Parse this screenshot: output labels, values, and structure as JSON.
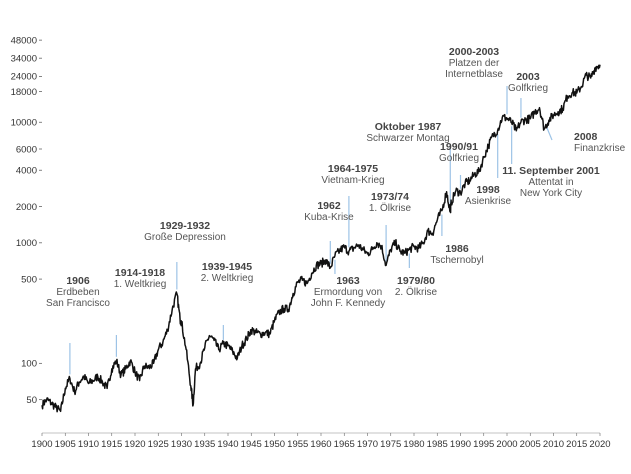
{
  "chart_data": {
    "type": "line",
    "title": "",
    "xlabel": "",
    "ylabel": "",
    "yscale": "log",
    "xlim": [
      1900,
      2020
    ],
    "ylim": [
      28,
      50000
    ],
    "grid": false,
    "legend": "none",
    "colors": {
      "line": "#111111",
      "annotation": "#9dc3e6",
      "text": "#444444"
    },
    "y_ticks": [
      {
        "value": 48000,
        "label": "48000"
      },
      {
        "value": 34000,
        "label": "34000"
      },
      {
        "value": 24000,
        "label": "24000"
      },
      {
        "value": 18000,
        "label": "18000"
      },
      {
        "value": 10000,
        "label": "10000"
      },
      {
        "value": 6000,
        "label": "6000"
      },
      {
        "value": 4000,
        "label": "4000"
      },
      {
        "value": 2000,
        "label": "2000"
      },
      {
        "value": 1000,
        "label": "1000"
      },
      {
        "value": 500,
        "label": "500"
      },
      {
        "value": 100,
        "label": "100"
      },
      {
        "value": 50,
        "label": "50"
      }
    ],
    "x_ticks": [
      "1900",
      "1905",
      "1910",
      "1915",
      "1920",
      "1925",
      "1930",
      "1935",
      "1940",
      "1945",
      "1950",
      "1955",
      "1960",
      "1965",
      "1970",
      "1975",
      "1980",
      "1985",
      "1990",
      "1995",
      "2000",
      "2005",
      "2010",
      "2015",
      "2020"
    ],
    "series": [
      {
        "name": "",
        "x": [
          1900,
          1901,
          1902,
          1903,
          1904,
          1905,
          1906,
          1907,
          1908,
          1909,
          1910,
          1911,
          1912,
          1913,
          1914,
          1915,
          1916,
          1917,
          1918,
          1919,
          1920,
          1921,
          1922,
          1923,
          1924,
          1925,
          1926,
          1927,
          1928,
          1929,
          1929.7,
          1930,
          1931,
          1932,
          1932.5,
          1933,
          1934,
          1935,
          1936,
          1937,
          1938,
          1939,
          1940,
          1941,
          1942,
          1943,
          1944,
          1945,
          1946,
          1947,
          1948,
          1949,
          1950,
          1951,
          1952,
          1953,
          1954,
          1955,
          1956,
          1957,
          1958,
          1959,
          1960,
          1961,
          1962,
          1963,
          1964,
          1965,
          1966,
          1967,
          1968,
          1969,
          1970,
          1971,
          1972,
          1973,
          1974,
          1975,
          1976,
          1977,
          1978,
          1979,
          1980,
          1981,
          1982,
          1983,
          1984,
          1985,
          1986,
          1987,
          1987.8,
          1988,
          1989,
          1990,
          1991,
          1992,
          1993,
          1994,
          1995,
          1996,
          1997,
          1998,
          1999,
          2000,
          2001,
          2002,
          2003,
          2004,
          2005,
          2006,
          2007,
          2008,
          2009,
          2010,
          2011,
          2012,
          2013,
          2014,
          2015,
          2016,
          2017,
          2018,
          2019,
          2020
        ],
        "values": [
          45,
          50,
          47,
          43,
          40,
          62,
          75,
          58,
          70,
          78,
          68,
          72,
          78,
          70,
          62,
          90,
          105,
          80,
          90,
          105,
          85,
          72,
          95,
          92,
          100,
          130,
          150,
          190,
          280,
          380,
          230,
          220,
          130,
          65,
          45,
          90,
          100,
          135,
          170,
          155,
          130,
          145,
          140,
          125,
          110,
          140,
          160,
          190,
          180,
          175,
          180,
          175,
          225,
          265,
          285,
          280,
          380,
          470,
          490,
          460,
          560,
          650,
          670,
          720,
          620,
          780,
          860,
          920,
          850,
          900,
          960,
          880,
          810,
          880,
          1000,
          940,
          650,
          880,
          1000,
          850,
          820,
          880,
          930,
          900,
          1000,
          1250,
          1200,
          1550,
          1850,
          2650,
          1800,
          2150,
          2700,
          2600,
          3100,
          3300,
          3700,
          3900,
          5100,
          6400,
          7800,
          8600,
          11000,
          10800,
          10000,
          8500,
          10100,
          10500,
          10700,
          12200,
          13200,
          8800,
          10400,
          11500,
          12200,
          13000,
          16500,
          17600,
          17500,
          19800,
          24600,
          23300,
          28500,
          30000
        ]
      }
    ],
    "annotations": [
      {
        "x": 1906,
        "y": 75,
        "label_bold": "1906",
        "label_lines": [
          "Erdbeben",
          "San Francisco"
        ]
      },
      {
        "x": 1916,
        "y": 105,
        "label_bold": "1914-1918",
        "label_lines": [
          "1. Weltkrieg"
        ]
      },
      {
        "x": 1929,
        "y": 380,
        "label_bold": "1929-1932",
        "label_lines": [
          "Große Depression"
        ]
      },
      {
        "x": 1939,
        "y": 145,
        "label_bold": "1939-1945",
        "label_lines": [
          "2. Weltkrieg"
        ]
      },
      {
        "x": 1962,
        "y": 620,
        "label_bold": "1962",
        "label_lines": [
          "Kuba-Krise"
        ]
      },
      {
        "x": 1963,
        "y": 780,
        "label_bold": "1963",
        "label_lines": [
          "Ermordung von",
          "John F. Kennedy"
        ]
      },
      {
        "x": 1966,
        "y": 850,
        "label_bold": "1964-1975",
        "label_lines": [
          "Vietnam-Krieg"
        ]
      },
      {
        "x": 1974,
        "y": 650,
        "label_bold": "1973/74",
        "label_lines": [
          "1. Ölkrise"
        ]
      },
      {
        "x": 1979,
        "y": 880,
        "label_bold": "1979/80",
        "label_lines": [
          "2. Ölkrise"
        ]
      },
      {
        "x": 1986,
        "y": 1850,
        "label_bold": "1986",
        "label_lines": [
          "Tschernobyl"
        ]
      },
      {
        "x": 1987.8,
        "y": 1800,
        "label_bold": "Oktober 1987",
        "label_lines": [
          "Schwarzer Montag"
        ]
      },
      {
        "x": 1990,
        "y": 2600,
        "label_bold": "1990/91",
        "label_lines": [
          "Golfkrieg"
        ]
      },
      {
        "x": 1998,
        "y": 8600,
        "label_bold": "1998",
        "label_lines": [
          "Asienkrise"
        ]
      },
      {
        "x": 2000,
        "y": 10800,
        "label_bold": "2000-2003",
        "label_lines": [
          "Platzen der",
          "Internetblase"
        ]
      },
      {
        "x": 2001,
        "y": 10000,
        "label_bold": "11. September 2001",
        "label_lines": [
          "Attentat in",
          "New York City"
        ]
      },
      {
        "x": 2003,
        "y": 10100,
        "label_bold": "2003",
        "label_lines": [
          "Golfkrieg"
        ]
      },
      {
        "x": 2008,
        "y": 8800,
        "label_bold": "2008",
        "label_lines": [
          "Finanzkrise"
        ]
      }
    ]
  }
}
